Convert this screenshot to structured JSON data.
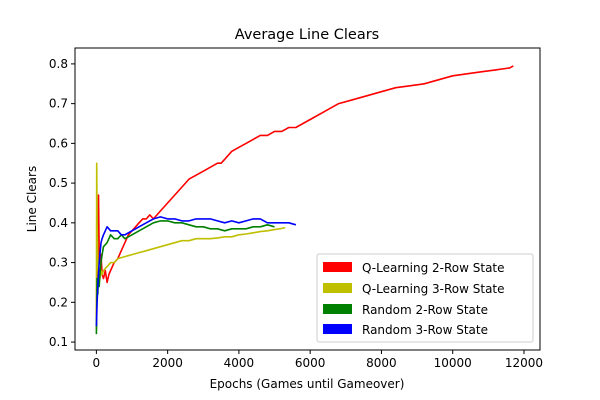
{
  "chart_data": {
    "type": "line",
    "title": "Average Line Clears",
    "xlabel": "Epochs (Games until Gameover)",
    "ylabel": "Line Clears",
    "xlim": [
      -600,
      12450
    ],
    "ylim": [
      0.08,
      0.84
    ],
    "xticks": [
      0,
      2000,
      4000,
      6000,
      8000,
      10000,
      12000
    ],
    "yticks": [
      0.1,
      0.2,
      0.3,
      0.4,
      0.5,
      0.6,
      0.7,
      0.8
    ],
    "grid": false,
    "legend_position": "lower-right",
    "series": [
      {
        "name": "Q-Learning 2-Row State",
        "color": "#ff0000",
        "x": [
          0,
          20,
          40,
          60,
          80,
          100,
          130,
          160,
          200,
          250,
          300,
          350,
          400,
          500,
          600,
          700,
          800,
          900,
          1000,
          1100,
          1200,
          1300,
          1400,
          1500,
          1600,
          1700,
          1800,
          1900,
          2000,
          2200,
          2400,
          2600,
          2800,
          3000,
          3200,
          3400,
          3500,
          3600,
          3800,
          4000,
          4200,
          4400,
          4600,
          4800,
          5000,
          5200,
          5400,
          5600,
          5800,
          6000,
          6400,
          6800,
          7200,
          7600,
          8000,
          8400,
          8800,
          9200,
          9600,
          10000,
          10400,
          10800,
          11200,
          11600,
          11700
        ],
        "y": [
          0.16,
          0.36,
          0.27,
          0.47,
          0.32,
          0.3,
          0.32,
          0.27,
          0.26,
          0.28,
          0.25,
          0.27,
          0.28,
          0.3,
          0.31,
          0.33,
          0.35,
          0.37,
          0.38,
          0.39,
          0.4,
          0.41,
          0.41,
          0.42,
          0.41,
          0.42,
          0.43,
          0.44,
          0.45,
          0.47,
          0.49,
          0.51,
          0.52,
          0.53,
          0.54,
          0.55,
          0.55,
          0.56,
          0.58,
          0.59,
          0.6,
          0.61,
          0.62,
          0.62,
          0.63,
          0.63,
          0.64,
          0.64,
          0.65,
          0.66,
          0.68,
          0.7,
          0.71,
          0.72,
          0.73,
          0.74,
          0.745,
          0.75,
          0.76,
          0.77,
          0.775,
          0.78,
          0.785,
          0.79,
          0.795
        ]
      },
      {
        "name": "Q-Learning 3-Row State",
        "color": "#bfbf00",
        "x": [
          0,
          10,
          20,
          40,
          60,
          80,
          100,
          130,
          160,
          200,
          300,
          400,
          500,
          600,
          800,
          1000,
          1200,
          1400,
          1600,
          1800,
          2000,
          2200,
          2400,
          2600,
          2800,
          3000,
          3200,
          3400,
          3600,
          3800,
          4000,
          4200,
          4400,
          4600,
          4800,
          5000,
          5200,
          5300
        ],
        "y": [
          0.13,
          0.55,
          0.4,
          0.3,
          0.27,
          0.25,
          0.26,
          0.28,
          0.27,
          0.28,
          0.29,
          0.3,
          0.3,
          0.31,
          0.315,
          0.32,
          0.325,
          0.33,
          0.335,
          0.34,
          0.345,
          0.35,
          0.355,
          0.355,
          0.36,
          0.36,
          0.36,
          0.362,
          0.365,
          0.365,
          0.37,
          0.372,
          0.375,
          0.378,
          0.38,
          0.383,
          0.386,
          0.388
        ]
      },
      {
        "name": "Random 2-Row State",
        "color": "#008000",
        "x": [
          0,
          20,
          40,
          60,
          80,
          100,
          130,
          160,
          200,
          300,
          400,
          500,
          600,
          700,
          800,
          1000,
          1200,
          1400,
          1600,
          1800,
          2000,
          2200,
          2400,
          2600,
          2800,
          3000,
          3200,
          3400,
          3600,
          3800,
          4000,
          4200,
          4400,
          4600,
          4800,
          5000
        ],
        "y": [
          0.12,
          0.26,
          0.22,
          0.27,
          0.24,
          0.27,
          0.3,
          0.32,
          0.34,
          0.35,
          0.37,
          0.36,
          0.36,
          0.37,
          0.36,
          0.37,
          0.38,
          0.39,
          0.4,
          0.405,
          0.405,
          0.4,
          0.4,
          0.395,
          0.39,
          0.39,
          0.385,
          0.385,
          0.38,
          0.385,
          0.385,
          0.385,
          0.39,
          0.39,
          0.395,
          0.39
        ]
      },
      {
        "name": "Random 3-Row State",
        "color": "#0000ff",
        "x": [
          0,
          20,
          40,
          60,
          80,
          100,
          130,
          160,
          200,
          250,
          300,
          350,
          400,
          500,
          600,
          700,
          800,
          900,
          1000,
          1200,
          1400,
          1600,
          1800,
          2000,
          2200,
          2400,
          2600,
          2800,
          3000,
          3200,
          3400,
          3600,
          3800,
          4000,
          4200,
          4400,
          4600,
          4800,
          5000,
          5200,
          5400,
          5600
        ],
        "y": [
          0.14,
          0.2,
          0.24,
          0.27,
          0.3,
          0.32,
          0.35,
          0.36,
          0.37,
          0.38,
          0.39,
          0.385,
          0.38,
          0.38,
          0.38,
          0.37,
          0.37,
          0.375,
          0.38,
          0.39,
          0.4,
          0.41,
          0.415,
          0.41,
          0.41,
          0.405,
          0.405,
          0.41,
          0.41,
          0.41,
          0.405,
          0.4,
          0.405,
          0.4,
          0.405,
          0.41,
          0.41,
          0.4,
          0.4,
          0.4,
          0.4,
          0.395
        ]
      }
    ]
  }
}
